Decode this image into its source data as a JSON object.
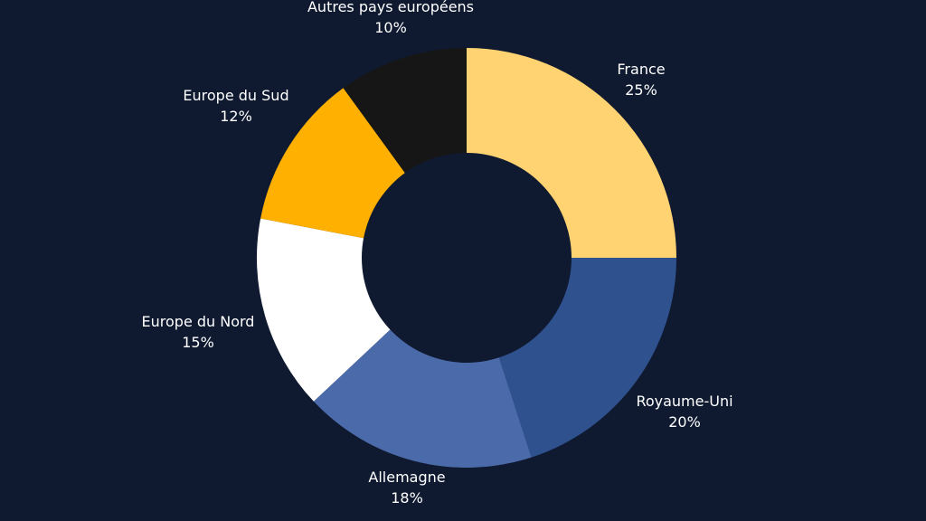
{
  "chart_data": {
    "type": "pie",
    "variant": "donut",
    "start": "top",
    "direction": "clockwise",
    "background": "#0f1a31",
    "slices": [
      {
        "label": "France",
        "value": 25,
        "display": "25%",
        "color": "#ffd272"
      },
      {
        "label": "Royaume-Uni",
        "value": 20,
        "display": "20%",
        "color": "#2f528f"
      },
      {
        "label": "Allemagne",
        "value": 18,
        "display": "18%",
        "color": "#4a6aa9"
      },
      {
        "label": "Europe du Nord",
        "value": 15,
        "display": "15%",
        "color": "#ffffff"
      },
      {
        "label": "Europe du Sud",
        "value": 12,
        "display": "12%",
        "color": "#ffb000"
      },
      {
        "label": "Autres pays européens",
        "value": 10,
        "display": "10%",
        "color": "#161616"
      }
    ]
  }
}
